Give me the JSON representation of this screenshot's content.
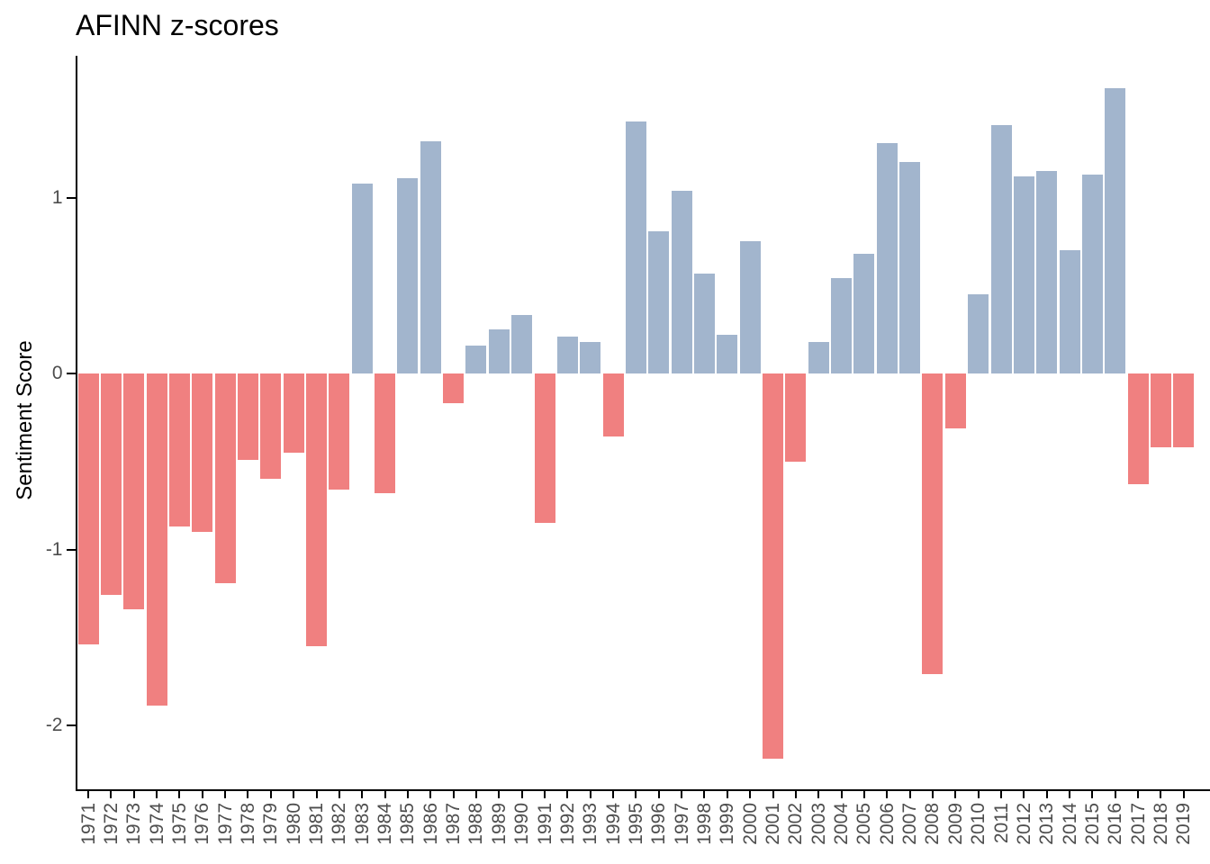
{
  "chart_data": {
    "type": "bar",
    "title": "AFINN z-scores",
    "xlabel": "",
    "ylabel": "Sentiment Score",
    "categories": [
      "1971",
      "1972",
      "1973",
      "1974",
      "1975",
      "1976",
      "1977",
      "1978",
      "1979",
      "1980",
      "1981",
      "1982",
      "1983",
      "1984",
      "1985",
      "1986",
      "1987",
      "1988",
      "1989",
      "1990",
      "1991",
      "1992",
      "1993",
      "1994",
      "1995",
      "1996",
      "1997",
      "1998",
      "1999",
      "2000",
      "2001",
      "2002",
      "2003",
      "2004",
      "2005",
      "2006",
      "2007",
      "2008",
      "2009",
      "2010",
      "2011",
      "2012",
      "2013",
      "2014",
      "2015",
      "2016",
      "2017",
      "2018",
      "2019"
    ],
    "values": [
      -1.54,
      -1.26,
      -1.34,
      -1.89,
      -0.87,
      -0.9,
      -1.19,
      -0.49,
      -0.6,
      -0.45,
      -1.55,
      -0.66,
      1.08,
      -0.68,
      1.11,
      1.32,
      -0.17,
      0.16,
      0.25,
      0.33,
      -0.85,
      0.21,
      0.18,
      -0.36,
      1.43,
      0.81,
      1.04,
      0.57,
      0.22,
      0.75,
      -2.19,
      -0.5,
      0.18,
      0.54,
      0.68,
      1.31,
      1.2,
      -1.71,
      -0.31,
      0.45,
      1.41,
      1.12,
      1.15,
      0.7,
      1.13,
      1.62,
      -0.63,
      -0.42,
      -0.42
    ],
    "ytick_labels": [
      "1",
      "0",
      "-1",
      "-2"
    ],
    "ytick_values": [
      1,
      0,
      -1,
      -2
    ],
    "ylim": [
      -2.35,
      1.8
    ],
    "grid": false,
    "legend": "none",
    "colors": {
      "positive_bar": "#a2b5cd",
      "negative_bar": "#f08080",
      "axis_line": "#000000",
      "tick_label": "#4d4d4d",
      "title_text": "#000000"
    }
  }
}
